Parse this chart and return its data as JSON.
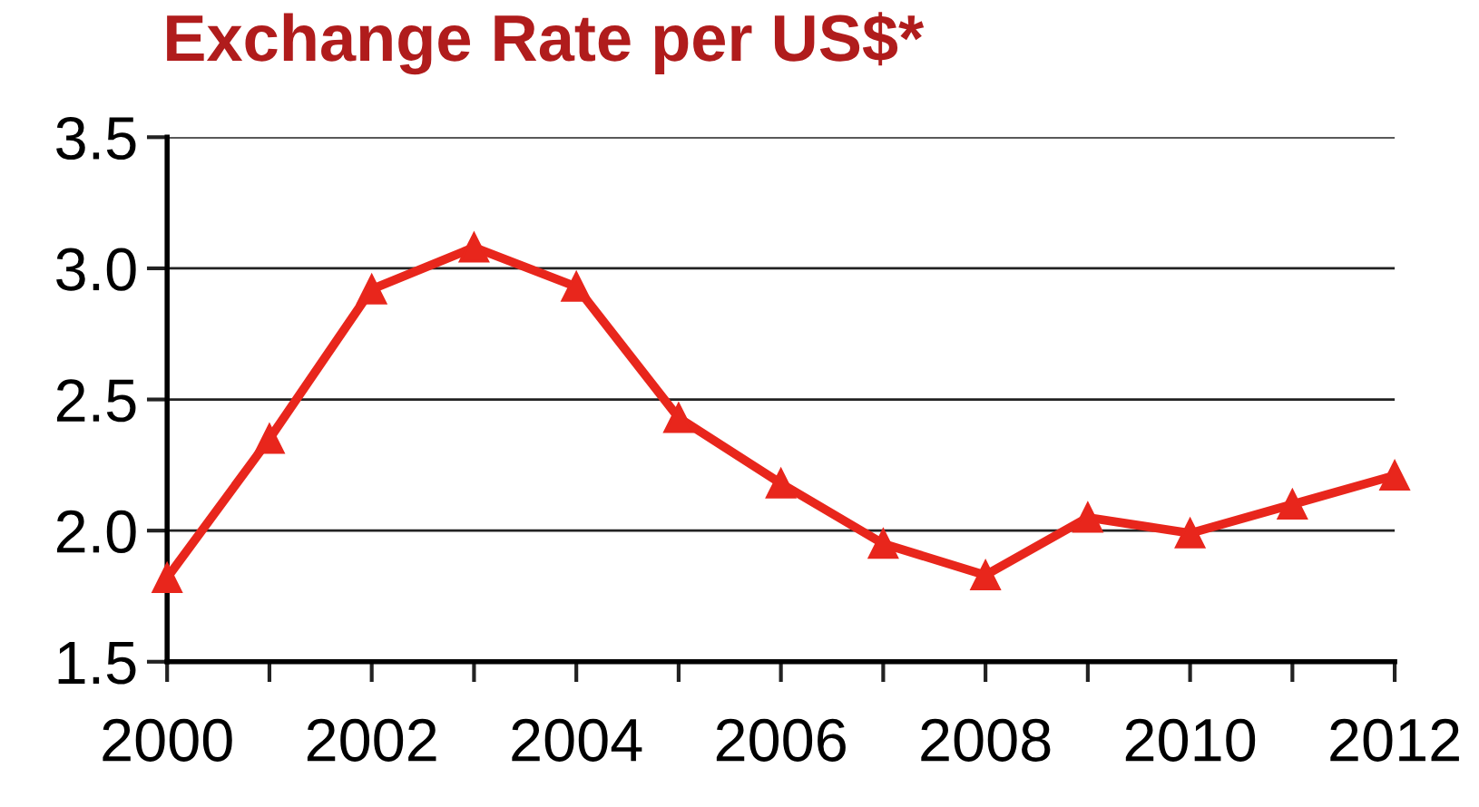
{
  "chart_data": {
    "type": "line",
    "title": "Exchange Rate per US$*",
    "x": [
      2000,
      2001,
      2002,
      2003,
      2004,
      2005,
      2006,
      2007,
      2008,
      2009,
      2010,
      2011,
      2012
    ],
    "series": [
      {
        "color": "#e8261c",
        "values": [
          1.82,
          2.35,
          2.92,
          3.08,
          2.93,
          2.43,
          2.18,
          1.95,
          1.83,
          2.05,
          1.99,
          2.1,
          2.21
        ]
      }
    ],
    "xlim": [
      2000,
      2012
    ],
    "xticks": [
      2000,
      {
        "value": 2001,
        "label": null
      },
      2002,
      {
        "value": 2003,
        "label": null
      },
      2004,
      {
        "value": 2005,
        "label": null
      },
      2006,
      {
        "value": 2007,
        "label": null
      },
      2008,
      {
        "value": 2009,
        "label": null
      },
      2010,
      {
        "value": 2011,
        "label": null
      },
      2012
    ],
    "ylim": [
      1.5,
      3.5
    ],
    "yticks": [
      {
        "value": 1.5,
        "label": "1.5"
      },
      {
        "value": 2.0,
        "label": "2.0"
      },
      {
        "value": 2.5,
        "label": "2.5"
      },
      {
        "value": 3.0,
        "label": "3.0"
      },
      {
        "value": 3.5,
        "label": "3.5"
      }
    ],
    "grid": "y",
    "marker": "triangle",
    "line_style": "solid",
    "legend": false
  }
}
